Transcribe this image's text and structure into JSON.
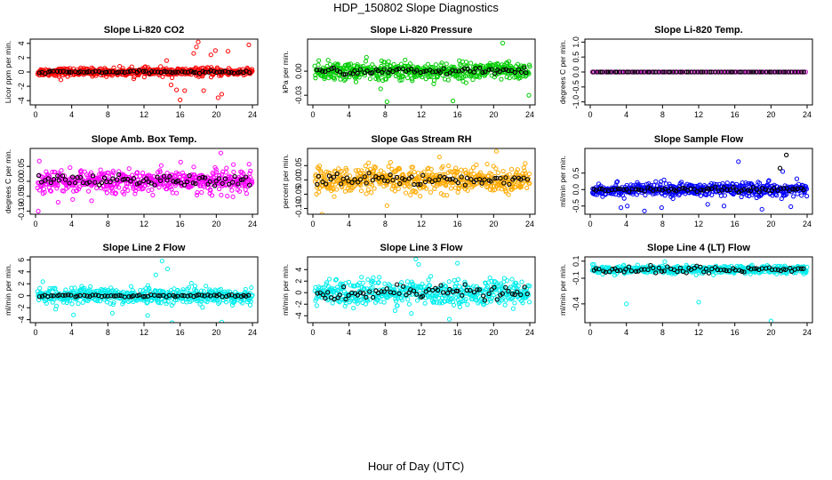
{
  "title": "HDP_150802  Slope Diagnostics",
  "xlabel": "Hour of Day (UTC)",
  "chart_data": [
    {
      "type": "scatter",
      "title": "Slope Li-820 CO2",
      "ylabel": "Licor ppm per min.",
      "xlim": [
        0,
        24
      ],
      "xticks": [
        0,
        4,
        8,
        12,
        16,
        20,
        24
      ],
      "ylim": [
        -4.6,
        4.6
      ],
      "yticks": [
        -4,
        -2,
        0,
        2,
        4
      ],
      "ytick_labels": [
        "-4",
        "-2",
        "0",
        "2",
        "4"
      ],
      "color": "#ff0000",
      "spread": 0.5,
      "outliers": [
        [
          15,
          -1.8
        ],
        [
          15.6,
          -2.5
        ],
        [
          16,
          -3.9
        ],
        [
          16.5,
          -2.6
        ],
        [
          17.5,
          2.6
        ],
        [
          17.8,
          3.5
        ],
        [
          18,
          4.2
        ],
        [
          18.6,
          -2.6
        ],
        [
          19.4,
          2.4
        ],
        [
          19.9,
          3.0
        ],
        [
          20.6,
          -3.1
        ],
        [
          21.3,
          2.9
        ],
        [
          23.6,
          3.8
        ],
        [
          2.8,
          -1.1
        ],
        [
          14.5,
          1.6
        ],
        [
          20.2,
          -3.6
        ]
      ],
      "black_spread": 0.15
    },
    {
      "type": "scatter",
      "title": "Slope Li-820 Pressure",
      "ylabel": "kPa per min.",
      "xlim": [
        0,
        24
      ],
      "xticks": [
        0,
        4,
        8,
        12,
        16,
        20,
        24
      ],
      "ylim": [
        -0.042,
        0.04
      ],
      "yticks": [
        -0.03,
        0.0
      ],
      "ytick_labels": [
        "-0.03",
        "0.00"
      ],
      "color": "#00cc00",
      "spread": 0.01,
      "outliers": [
        [
          7.5,
          -0.022
        ],
        [
          8.2,
          -0.038
        ],
        [
          15.5,
          -0.037
        ],
        [
          21,
          0.035
        ],
        [
          23.9,
          -0.03
        ],
        [
          2.4,
          -0.01
        ],
        [
          11,
          -0.012
        ]
      ],
      "black_spread": 0.004
    },
    {
      "type": "scatter",
      "title": "Slope Li-820 Temp.",
      "ylabel": "degrees C per min.",
      "xlim": [
        0,
        24
      ],
      "xticks": [
        0,
        4,
        8,
        12,
        16,
        20,
        24
      ],
      "ylim": [
        -1.1,
        1.1
      ],
      "yticks": [
        -1.0,
        -0.5,
        0.0,
        0.5,
        1.0
      ],
      "ytick_labels": [
        "-1.0",
        "-0.5",
        "0.0",
        "0.5",
        "1.0"
      ],
      "color": "#cc00cc",
      "spread": 0.0,
      "outliers": [],
      "black_spread": 0.0
    },
    {
      "type": "scatter",
      "title": "Slope Amb. Box Temp.",
      "ylabel": "degrees C per min.",
      "xlim": [
        0,
        24
      ],
      "xticks": [
        0,
        4,
        8,
        12,
        16,
        20,
        24
      ],
      "ylim": [
        -0.11,
        0.11
      ],
      "yticks": [
        -0.1,
        -0.05,
        0.0,
        0.05
      ],
      "ytick_labels": [
        "-0.10",
        "-0.05",
        "0.00",
        "0.05"
      ],
      "color": "#ff00ff",
      "spread": 0.035,
      "outliers": [
        [
          0.3,
          -0.1
        ],
        [
          20.5,
          0.095
        ],
        [
          2.5,
          -0.07
        ],
        [
          6.2,
          -0.065
        ]
      ],
      "black_spread": 0.02
    },
    {
      "type": "scatter",
      "title": "Slope Gas Stream RH",
      "ylabel": "percent per min.",
      "xlim": [
        0,
        24
      ],
      "xticks": [
        0,
        4,
        8,
        12,
        16,
        20,
        24
      ],
      "ylim": [
        -0.12,
        0.11
      ],
      "yticks": [
        -0.1,
        -0.05,
        0.0,
        0.05
      ],
      "ytick_labels": [
        "-0.10",
        "-0.05",
        "0.00",
        "0.05"
      ],
      "color": "#ffaa00",
      "spread": 0.04,
      "outliers": [
        [
          1,
          -0.12
        ],
        [
          20.3,
          0.1
        ],
        [
          8.2,
          -0.09
        ],
        [
          14,
          0.08
        ]
      ],
      "black_spread": 0.02
    },
    {
      "type": "scatter",
      "title": "Slope Sample Flow",
      "ylabel": "ml/min per min.",
      "xlim": [
        0,
        24
      ],
      "xticks": [
        0,
        4,
        8,
        12,
        16,
        20,
        24
      ],
      "ylim": [
        -0.75,
        1.25
      ],
      "yticks": [
        -0.5,
        0.0,
        0.5
      ],
      "ytick_labels": [
        "-0.5",
        "0.0",
        "0.5"
      ],
      "color": "#0000ff",
      "spread": 0.18,
      "outliers": [
        [
          3.4,
          -0.55
        ],
        [
          4.1,
          -0.5
        ],
        [
          6,
          -0.65
        ],
        [
          7.9,
          -0.55
        ],
        [
          16.4,
          0.85
        ],
        [
          21.3,
          0.55
        ],
        [
          22.2,
          -0.52
        ],
        [
          13,
          -0.45
        ],
        [
          14.8,
          -0.5
        ],
        [
          19,
          -0.6
        ]
      ],
      "black_spread": 0.08,
      "black_outliers": [
        [
          21,
          0.65
        ],
        [
          21.7,
          1.05
        ]
      ]
    },
    {
      "type": "scatter",
      "title": "Slope Line 2 Flow",
      "ylabel": "ml/min per min.",
      "xlim": [
        0,
        24
      ],
      "xticks": [
        0,
        4,
        8,
        12,
        16,
        20,
        24
      ],
      "ylim": [
        -4.5,
        6.5
      ],
      "yticks": [
        -4,
        -2,
        0,
        2,
        4,
        6
      ],
      "ytick_labels": [
        "-4",
        "-2",
        "0",
        "2",
        "4",
        "6"
      ],
      "color": "#00eeee",
      "spread": 1.2,
      "outliers": [
        [
          14,
          5.8
        ],
        [
          14.6,
          4.5
        ],
        [
          15.1,
          -4.5
        ],
        [
          13.3,
          3.5
        ],
        [
          8.5,
          -2.9
        ],
        [
          4.2,
          -3.2
        ],
        [
          20.6,
          -4.4
        ],
        [
          12.4,
          -3.3
        ]
      ],
      "black_spread": 0.2
    },
    {
      "type": "scatter",
      "title": "Slope Line 3 Flow",
      "ylabel": "ml/min per min.",
      "xlim": [
        0,
        24
      ],
      "xticks": [
        0,
        4,
        8,
        12,
        16,
        20,
        24
      ],
      "ylim": [
        -5.2,
        6.2
      ],
      "yticks": [
        -4,
        -2,
        0,
        2,
        4
      ],
      "ytick_labels": [
        "-4",
        "-2",
        "0",
        "2",
        "4"
      ],
      "color": "#00eeee",
      "spread": 1.8,
      "outliers": [
        [
          11.4,
          5.8
        ],
        [
          11.7,
          4.9
        ],
        [
          16,
          5.1
        ],
        [
          15.1,
          -4.6
        ],
        [
          9.1,
          -3.1
        ],
        [
          10.9,
          -3.6
        ]
      ],
      "black_spread": 1.2
    },
    {
      "type": "scatter",
      "title": "Slope Line 4 (LT) Flow",
      "ylabel": "ml/min per min.",
      "xlim": [
        0,
        24
      ],
      "xticks": [
        0,
        4,
        8,
        12,
        16,
        20,
        24
      ],
      "ylim": [
        -0.62,
        0.15
      ],
      "yticks": [
        -0.4,
        -0.1,
        0.1
      ],
      "ytick_labels": [
        "-0.4",
        "-0.1",
        "0.1"
      ],
      "color": "#00eeee",
      "spread": 0.04,
      "outliers": [
        [
          4,
          -0.4
        ],
        [
          12,
          -0.38
        ],
        [
          20,
          -0.6
        ]
      ],
      "black_spread": 0.04
    }
  ]
}
